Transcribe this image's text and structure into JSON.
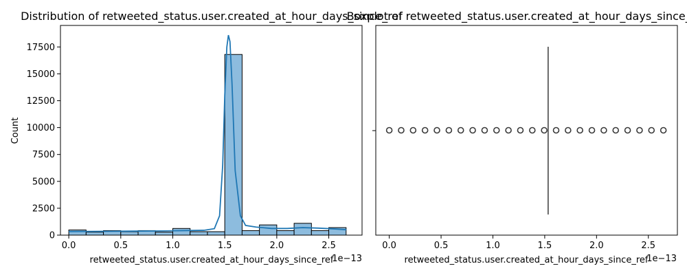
{
  "chart_data": [
    {
      "type": "histogram",
      "title": "Distribution of retweeted_status.user.created_at_hour_days_since_ref",
      "xlabel": "retweeted_status.user.created_at_hour_days_since_ref",
      "ylabel": "Count",
      "x_offset_text": "1e−13",
      "xlim": [
        -0.08,
        2.82
      ],
      "ylim": [
        0,
        19500
      ],
      "xticks": [
        0.0,
        0.5,
        1.0,
        1.5,
        2.0,
        2.5
      ],
      "xtick_labels": [
        "0.0",
        "0.5",
        "1.0",
        "1.5",
        "2.0",
        "2.5"
      ],
      "yticks": [
        0,
        2500,
        5000,
        7500,
        10000,
        12500,
        15000,
        17500
      ],
      "ytick_labels": [
        "0",
        "2500",
        "5000",
        "7500",
        "10000",
        "12500",
        "15000",
        "17500"
      ],
      "bin_edges": [
        0.0,
        0.1667,
        0.3333,
        0.5,
        0.6667,
        0.8333,
        1.0,
        1.1667,
        1.3333,
        1.5,
        1.6667,
        1.8333,
        2.0,
        2.1667,
        2.3333,
        2.5,
        2.6667
      ],
      "values": [
        480,
        280,
        420,
        320,
        420,
        280,
        620,
        320,
        320,
        16800,
        420,
        950,
        420,
        1100,
        420,
        700
      ],
      "kde": {
        "x": [
          0.0,
          0.3,
          0.6,
          0.9,
          1.1,
          1.3,
          1.4,
          1.45,
          1.48,
          1.5,
          1.52,
          1.535,
          1.55,
          1.57,
          1.6,
          1.65,
          1.7,
          1.8,
          1.95,
          2.1,
          2.25,
          2.4,
          2.55,
          2.67
        ],
        "y": [
          330,
          350,
          370,
          390,
          420,
          450,
          600,
          1800,
          6500,
          13000,
          17500,
          18600,
          18000,
          14000,
          6000,
          1800,
          900,
          750,
          620,
          620,
          700,
          650,
          580,
          500
        ]
      },
      "bar_color": "#8dbcde",
      "bar_edge_color": "#000000",
      "line_color": "#1f77b4"
    },
    {
      "type": "box",
      "title": "Boxplot of retweeted_status.user.created_at_hour_days_since_ref",
      "xlabel": "retweeted_status.user.created_at_hour_days_since_ref",
      "x_offset_text": "1e−13",
      "xlim": [
        -0.13,
        2.78
      ],
      "xticks": [
        0.0,
        0.5,
        1.0,
        1.5,
        2.0,
        2.5
      ],
      "xtick_labels": [
        "0.0",
        "0.5",
        "1.0",
        "1.5",
        "2.0",
        "2.5"
      ],
      "box": {
        "q1": 1.533,
        "median": 1.533,
        "q3": 1.533,
        "whisker_low": 1.533,
        "whisker_high": 1.533
      },
      "outliers": [
        0.0,
        0.115,
        0.23,
        0.345,
        0.46,
        0.575,
        0.69,
        0.805,
        0.92,
        1.035,
        1.15,
        1.265,
        1.38,
        1.495,
        1.61,
        1.725,
        1.84,
        1.955,
        2.07,
        2.185,
        2.3,
        2.415,
        2.53,
        2.645
      ],
      "line_color": "#3a3a3a"
    }
  ]
}
